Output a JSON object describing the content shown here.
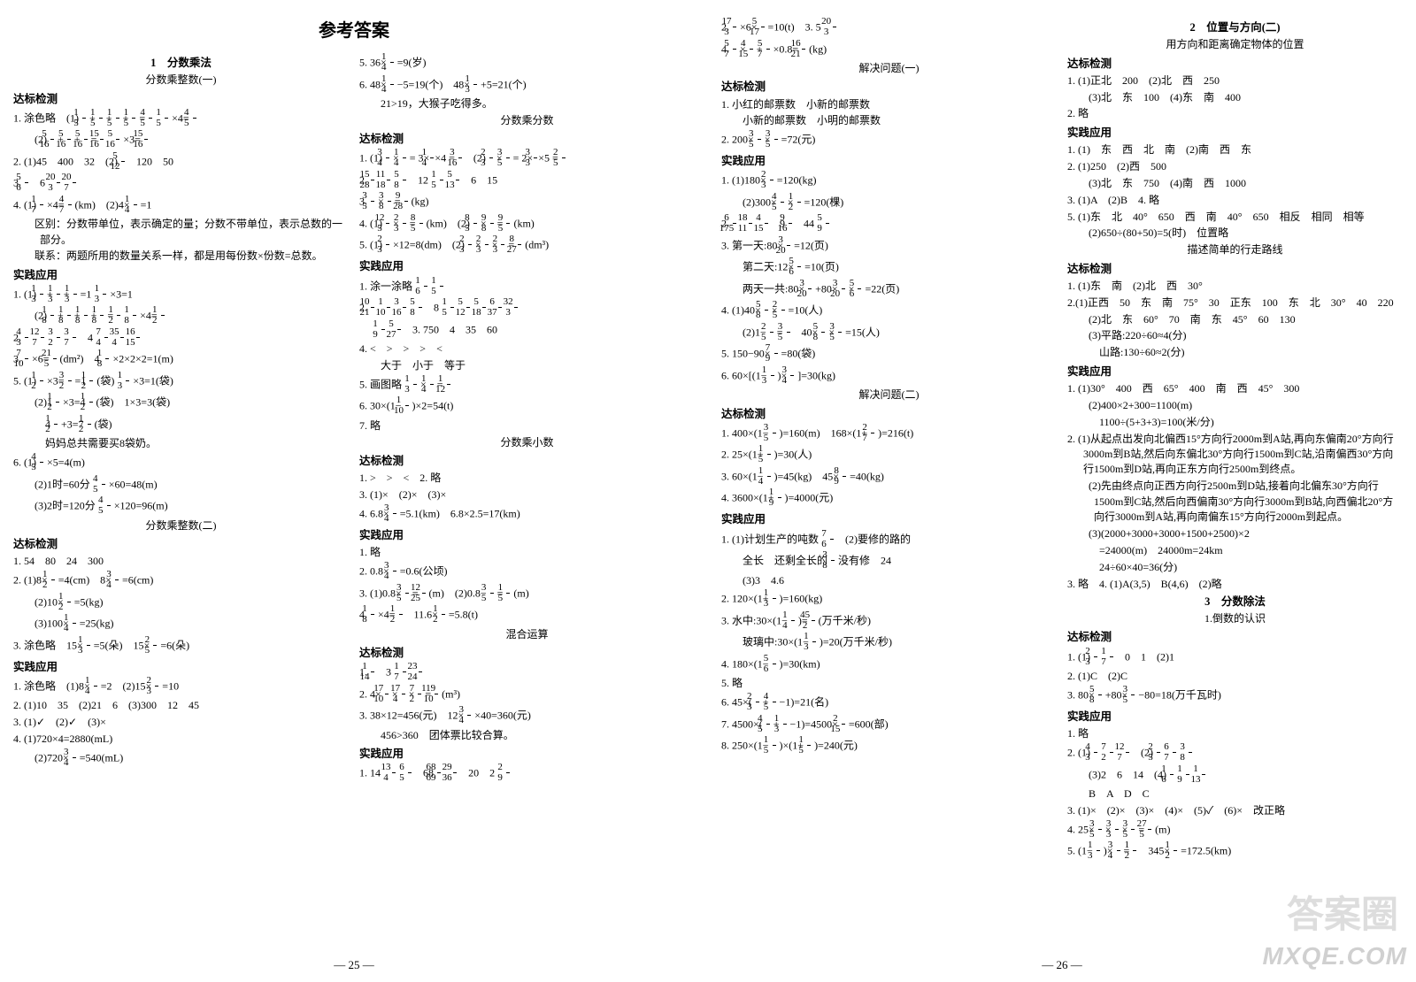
{
  "title": "参考答案",
  "page_left_num": "— 25 —",
  "page_right_num": "— 26 —",
  "watermark_small": "MXQE.COM",
  "watermark_big": "答案圈",
  "left": {
    "c1": {
      "h1": "1　分数乘法",
      "h2": "分数乘整数(一)",
      "sec1": "达标检测",
      "l1": "1. 涂色略　(1) 1/5 + 1/5 + 1/5 + 1/5 = 4/5　1/5 ×4= 4/5",
      "l2": "　(2) 5/16 + 5/16 + 5/16 = 15/16　5/16 ×3= 15/16",
      "l3": "2. (1)45　400　32　(2) 5/12　120　50",
      "l4": "3. 5/6　6　20/3　20/7",
      "l5": "4. (1) 1/7 ×4= 4/7 (km)　(2)4× 1/4 =1",
      "l6": "　区别：分数带单位，表示确定的量；分数不带单位，表示总数的一部分。",
      "l6b": "　联系：两题所用的数量关系一样，都是用每份数×份数=总数。",
      "sec2": "实践应用",
      "l7": "1. (1) 1/3 + 1/3 + 1/3 =1　1/3 ×3=1",
      "l8": "　(2) 1/8 + 1/8 + 1/8 + 1/8 = 1/2　1/8 ×4= 1/2",
      "l9": "2. 4/3　12/7　3/2　3/7　4　7/4　35/4　16/15",
      "l10": "3. 7/10 ×6= 21/5 (dm²)　4. 1/8 ×2×2×2=1(m)",
      "l11": "5. (1) 1/2 ×3= 3/2 =1 1/2 (袋)　1/3 ×3=1(袋)",
      "l12": "　(2)1 1/2 ×3=4 1/2 (袋)　1×3=3(袋)",
      "l13": "　　4 1/2 +3=7 1/2 (袋)",
      "l14": "　　妈妈总共需要买8袋奶。",
      "l15": "6. (1) 4/5 ×5=4(m)",
      "l16": "　(2)1时=60分　4/5 ×60=48(m)",
      "l17": "　(3)2时=120分　4/5 ×120=96(m)",
      "h3": "分数乘整数(二)",
      "sec3": "达标检测",
      "l18": "1. 54　80　24　300",
      "l19": "2. (1)8× 1/2 =4(cm)　8× 3/4 =6(cm)",
      "l20": "　(2)10× 1/2 =5(kg)",
      "l21": "　(3)100× 1/4 =25(kg)",
      "l22": "3. 涂色略　15× 1/3 =5(朵)　15× 2/5 =6(朵)",
      "sec4": "实践应用",
      "l23": "1. 涂色略　(1)8× 1/4 =2　(2)15× 2/3 =10",
      "l24": "2. (1)10　35　(2)21　6　(3)300　12　45",
      "l25": "3. (1)✓　(2)✓　(3)×",
      "l26": "4. (1)720×4=2880(mL)",
      "l27": "　(2)720× 3/4 =540(mL)"
    },
    "c2": {
      "l1": "5. 36× 1/4 =9(岁)",
      "l2": "6. 48× 1/4 −5=19(个)　48× 1/3 +5=21(个)",
      "l3": "　21>19，大猴子吃得多。",
      "h1": "分数乘分数",
      "sec1": "达标检测",
      "l4": "1. (1) 3/4 × 1/4 = 3×1/4×4 = 3/16　(2) 2/3 × 3/5 = 2×3/3×5 = 2/5",
      "l5": "2. 15/28　11/18　5/8　12　1/5　5/13　6　15",
      "l6": "3. 3/5 × 3/8 = 9/28 (kg)",
      "l7": "4. (1) 12/5 × 2/3 = 8/5 (km)　(2) 8/5 × 9/8 = 9/5 (km)",
      "l8": "5. (1) 2/3 ×12=8(dm)　(2) 2/3 × 2/3 × 2/3 = 8/27 (dm³)",
      "sec2": "实践应用",
      "l9": "1. 涂一涂略　1/6　1/5",
      "l10": "2. 10/21　1/10　3/16　5/8　8　1/5　5/12　5/18　6/37　32/3",
      "l11": "　1/9　5/27　3. 750　4　35　60",
      "l12": "4. <　>　>　>　<",
      "l12b": "　大于　小于　等于",
      "l13": "5. 画图略　1/3 × 1/4 = 1/12",
      "l14": "6. 30×(1− 1/10 )×2=54(t)",
      "l15": "7. 略",
      "h2": "分数乘小数",
      "sec3": "达标检测",
      "l16": "1. >　>　<　2. 略",
      "l17": "3. (1)×　(2)×　(3)×",
      "l18": "4. 6.8× 3/4 =5.1(km)　6.8×2.5=17(km)",
      "sec4": "实践应用",
      "l19": "1. 略",
      "l20": "2. 0.8× 3/4 =0.6(公顷)",
      "l21": "3. (1)0.8× 3/5 = 12/25 (m)　(2)0.8− 3/5 = 1/5 (m)",
      "l22": "4. 1/8 ×4= 1/2　11.6× 1/2 =5.8(t)",
      "h3": "混合运算",
      "sec5": "达标检测",
      "l23": "1. 1/14　3　1/7　23/24",
      "l24": "2. 4× 17/10 × 17/4 × 7/2 = 119/10 (m³)",
      "l25": "3. 38×12=456(元)　12× 3/4 ×40=360(元)",
      "l26": "　456>360　团体票比较合算。",
      "sec6": "实践应用",
      "l27": "1. 14　13/4　6/5　68 68/69　29/36　20　2　2/9"
    }
  },
  "right": {
    "c1": {
      "l1": "2. 17/3 ×6× 5/17 =10(t)　3. 5　20/3",
      "l2": "4. 5/7 × 4/15 + 5/7 ×0.8= 16/21 (kg)",
      "h1": "解决问题(一)",
      "sec1": "达标检测",
      "l3": "1. 小红的邮票数　小新的邮票数",
      "l3b": "　小新的邮票数　小明的邮票数",
      "l4": "2. 200× 3/5 × 3/5 =72(元)",
      "sec2": "实践应用",
      "l5": "1. (1)180× 2/3 =120(kg)",
      "l6": "　(2)300× 4/5 × 1/2 =120(棵)",
      "l7": "2. 6/175　18/11　4/15　9 9/16　44　5/9",
      "l8": "3. 第一天:80× 3/20 =12(页)",
      "l9": "　第二天:12× 5/6 =10(页)",
      "l10": "　两天一共:80× 3/20 +80× 3/20 × 5/6 =22(页)",
      "l11": "4. (1)40× 5/8 × 2/5 =10(人)",
      "l12": "　(2)1− 2/5 = 3/5　40× 5/8 × 3/5 =15(人)",
      "l13": "5. 150−90× 7/9 =80(袋)",
      "l14": "6. 60×[(1− 1/3 )× 3/4 ]=30(kg)",
      "h2": "解决问题(二)",
      "sec3": "达标检测",
      "l15": "1. 400×(1− 3/5 )=160(m)　168×(1+ 2/7 )=216(t)",
      "l16": "2. 25×(1+ 1/5 )=30(人)",
      "l17": "3. 60×(1− 1/4 )=45(kg)　45× 8/9 =40(kg)",
      "l18": "4. 3600×(1+ 1/9 )=4000(元)",
      "sec4": "实践应用",
      "l19": "1. (1)计划生产的吨数　7/6　(2)要修的路的",
      "l19c": "　全长　还剩全长的 3/8 没有修　24",
      "l19b": "　(3)3　4.6",
      "l20": "2. 120×(1+ 1/3 )=160(kg)",
      "l21": "3. 水中:30×(1− 1/4 )= 45/2 (万千米/秒)",
      "l22": "　玻璃中:30×(1− 1/3 )=20(万千米/秒)",
      "l23": "4. 180×(1− 5/6 )=30(km)",
      "l24": "5. 略",
      "l25": "6. 45×( 2/3 + 4/5 −1)=21(名)",
      "l26": "7. 4500×( 4/5 + 1/3 −1)=4500× 2/15 =600(部)",
      "l27": "8. 250×(1− 1/5 )×(1+ 1/5 )=240(元)"
    },
    "c2": {
      "h1": "2　位置与方向(二)",
      "h1b": "用方向和距离确定物体的位置",
      "sec1": "达标检测",
      "l1": "1. (1)正北　200　(2)北　西　250",
      "l2": "　(3)北　东　100　(4)东　南　400",
      "l3": "2. 略",
      "sec2": "实践应用",
      "l4": "1. (1)　东　西　北　南　(2)南　西　东",
      "l5": "2. (1)250　(2)西　500",
      "l6": "　(3)北　东　750　(4)南　西　1000",
      "l7": "3. (1)A　(2)B　4. 略",
      "l8": "5. (1)东　北　40°　650　西　南　40°　650　相反　相同　相等",
      "l8b": "　(2)650÷(80+50)=5(时)　位置略",
      "h2": "描述简单的行走路线",
      "sec3": "达标检测",
      "l9": "1. (1)东　南　(2)北　西　30°",
      "l10": "2.(1)正西　50　东　南　75°　30　正东　100　东　北　30°　40　220",
      "l10b": "　(2)北　东　60°　70　南　东　45°　60　130",
      "l11": "　(3)平路:220÷60≈4(分)",
      "l11b": "　　山路:130÷60≈2(分)",
      "sec4": "实践应用",
      "l12": "1. (1)30°　400　西　65°　400　南　西　45°　300",
      "l13": "　(2)400×2+300=1100(m)",
      "l13b": "　　1100÷(5+3+3)=100(米/分)",
      "l14": "2. (1)从起点出发向北偏西15°方向行2000m到A站,再向东偏南20°方向行3000m到B站,然后向东偏北30°方向行1500m到C站,沿南偏西30°方向行1500m到D站,再向正东方向行2500m到终点。",
      "l15": "　(2)先由终点向正西方向行2500m到D站,接着向北偏东30°方向行1500m到C站,然后向西偏南30°方向行3000m到B站,向西偏北20°方向行3000m到A站,再向南偏东15°方向行2000m到起点。",
      "l16": "　(3)(2000+3000+3000+1500+2500)×2",
      "l16b": "　　=24000(m)　24000m=24km",
      "l16c": "　　24÷60×40=36(分)",
      "l17": "3. 略　4. (1)A(3,5)　B(4,6)　(2)略",
      "h3": "3　分数除法",
      "h3b": "1.倒数的认识",
      "sec5": "达标检测",
      "l18": "1. (1) 2/3　1/7　0　1　(2)1",
      "l19": "2. (1)C　(2)C",
      "l20": "3. 80× 5/8 +80× 3/5 −80=18(万千瓦时)",
      "sec6": "实践应用",
      "l21": "1. 略",
      "l22": "2. (1) 4/3　7/2　12/7　(2) 2/5　6/7　3/8",
      "l23": "　(3)2　6　14　(4) 1/6　1/9　1/13",
      "l24": "　B　A　D　C",
      "l25": "3. (1)×　(2)×　(3)×　(4)×　(5)✓　(6)×　改正略",
      "l26": "4. 25× 3/5 × 3/3 × 3/5 = 27/5 (m)",
      "l27": "5. (1− 1/3 )× 3/4 = 1/2　345× 1/2 =172.5(km)"
    }
  }
}
